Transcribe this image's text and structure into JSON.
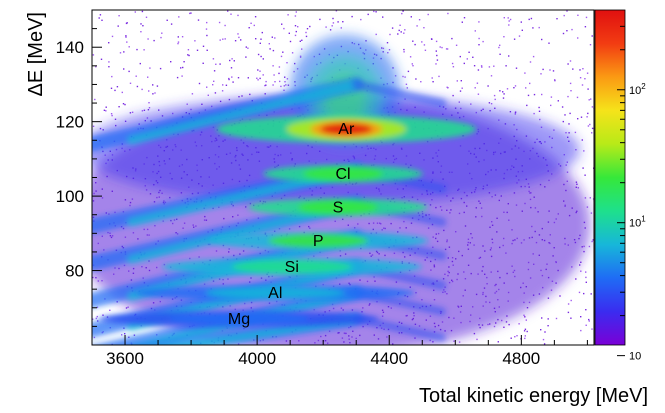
{
  "chart_data": {
    "type": "heatmap",
    "xlabel": "Total kinetic energy [MeV]",
    "ylabel": "ΔE [MeV]",
    "xlim": [
      3500,
      5020
    ],
    "ylim": [
      60,
      150
    ],
    "x_ticks": [
      3600,
      4000,
      4400,
      4800
    ],
    "y_ticks": [
      80,
      100,
      120,
      140
    ],
    "colorbar": {
      "scale": "log",
      "labels": [
        {
          "base": "10",
          "exp": "2",
          "value": 100
        },
        {
          "base": "10",
          "exp": "1",
          "value": 10
        },
        {
          "base": "10",
          "exp": "",
          "value": 1
        }
      ],
      "colors": [
        "#7a00d6",
        "#3a2cf0",
        "#1f6cf5",
        "#17b7d9",
        "#1ee08c",
        "#36e83a",
        "#b8ea18",
        "#f5e31a",
        "#fb9a13",
        "#f23c12",
        "#e01010"
      ]
    },
    "bands": [
      {
        "label": "Ar",
        "x": 4270,
        "y": 118
      },
      {
        "label": "Cl",
        "x": 4260,
        "y": 106
      },
      {
        "label": "S",
        "x": 4245,
        "y": 97
      },
      {
        "label": "P",
        "x": 4185,
        "y": 88
      },
      {
        "label": "Si",
        "x": 4105,
        "y": 81
      },
      {
        "label": "Al",
        "x": 4055,
        "y": 74
      },
      {
        "label": "Mg",
        "x": 3945,
        "y": 67
      }
    ]
  }
}
